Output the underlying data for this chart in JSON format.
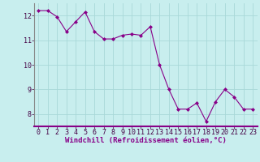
{
  "x": [
    0,
    1,
    2,
    3,
    4,
    5,
    6,
    7,
    8,
    9,
    10,
    11,
    12,
    13,
    14,
    15,
    16,
    17,
    18,
    19,
    20,
    21,
    22,
    23
  ],
  "y": [
    12.2,
    12.2,
    11.95,
    11.35,
    11.75,
    12.15,
    11.35,
    11.05,
    11.05,
    11.2,
    11.25,
    11.2,
    11.55,
    10.0,
    9.0,
    8.2,
    8.2,
    8.45,
    7.7,
    8.5,
    9.0,
    8.7,
    8.2,
    8.2
  ],
  "line_color": "#880088",
  "marker": "D",
  "marker_size": 2.0,
  "bg_color": "#C8EEEE",
  "grid_color": "#A8D8D8",
  "xlabel": "Windchill (Refroidissement éolien,°C)",
  "xlabel_fontsize": 6.5,
  "tick_fontsize": 6.0,
  "ylim": [
    7.5,
    12.5
  ],
  "xlim": [
    -0.5,
    23.5
  ],
  "yticks": [
    8,
    9,
    10,
    11,
    12
  ],
  "xticks": [
    0,
    1,
    2,
    3,
    4,
    5,
    6,
    7,
    8,
    9,
    10,
    11,
    12,
    13,
    14,
    15,
    16,
    17,
    18,
    19,
    20,
    21,
    22,
    23
  ],
  "spine_color": "#888888",
  "axis_line_color": "#880088"
}
